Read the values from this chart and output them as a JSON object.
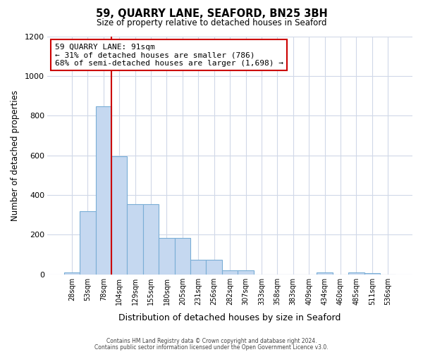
{
  "title": "59, QUARRY LANE, SEAFORD, BN25 3BH",
  "subtitle": "Size of property relative to detached houses in Seaford",
  "xlabel": "Distribution of detached houses by size in Seaford",
  "ylabel": "Number of detached properties",
  "bar_labels": [
    "28sqm",
    "53sqm",
    "78sqm",
    "104sqm",
    "129sqm",
    "155sqm",
    "180sqm",
    "205sqm",
    "231sqm",
    "256sqm",
    "282sqm",
    "307sqm",
    "333sqm",
    "358sqm",
    "383sqm",
    "409sqm",
    "434sqm",
    "460sqm",
    "485sqm",
    "511sqm",
    "536sqm"
  ],
  "bar_values": [
    10,
    318,
    848,
    595,
    355,
    355,
    185,
    185,
    75,
    75,
    20,
    20,
    0,
    0,
    0,
    0,
    10,
    0,
    10,
    5,
    0
  ],
  "bar_color": "#c5d8f0",
  "bar_edge_color": "#7aaed6",
  "vline_color": "#cc0000",
  "vline_x_index": 2.5,
  "ylim": [
    0,
    1200
  ],
  "yticks": [
    0,
    200,
    400,
    600,
    800,
    1000,
    1200
  ],
  "annotation_title": "59 QUARRY LANE: 91sqm",
  "annotation_line1": "← 31% of detached houses are smaller (786)",
  "annotation_line2": "68% of semi-detached houses are larger (1,698) →",
  "annotation_box_color": "#ffffff",
  "annotation_box_edge": "#cc0000",
  "footer_line1": "Contains HM Land Registry data © Crown copyright and database right 2024.",
  "footer_line2": "Contains public sector information licensed under the Open Government Licence v3.0.",
  "background_color": "#ffffff",
  "grid_color": "#d0d8e8"
}
